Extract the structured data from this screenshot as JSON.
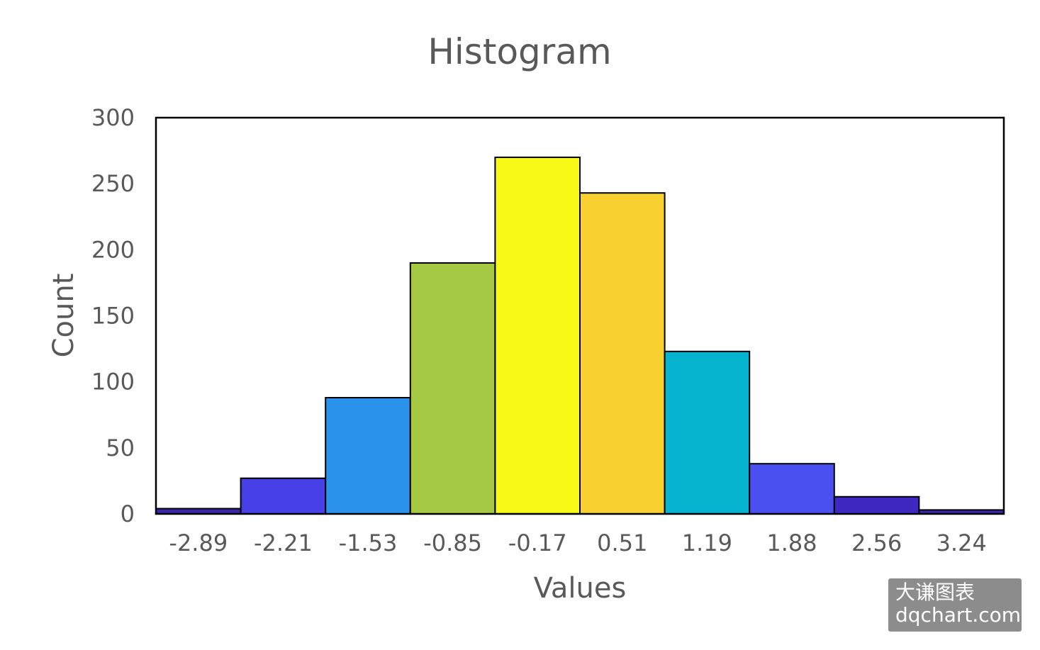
{
  "chart_data": {
    "type": "bar",
    "title": "Histogram",
    "xlabel": "Values",
    "ylabel": "Count",
    "categories": [
      "-2.89",
      "-2.21",
      "-1.53",
      "-0.85",
      "-0.17",
      "0.51",
      "1.19",
      "1.88",
      "2.56",
      "3.24"
    ],
    "values": [
      4,
      27,
      88,
      190,
      270,
      243,
      123,
      38,
      13,
      3
    ],
    "colors": [
      "#3e26a8",
      "#4640e6",
      "#2b92ec",
      "#a5c943",
      "#f8f916",
      "#f8d130",
      "#06b4cf",
      "#4a4ff0",
      "#3e28c2",
      "#3e26a8"
    ],
    "ylim": [
      0,
      300
    ],
    "yticks": [
      0,
      50,
      100,
      150,
      200,
      250,
      300
    ],
    "grid": false,
    "legend": "none"
  },
  "watermark": {
    "line1": "大谦图表",
    "line2": "dqchart.com"
  }
}
